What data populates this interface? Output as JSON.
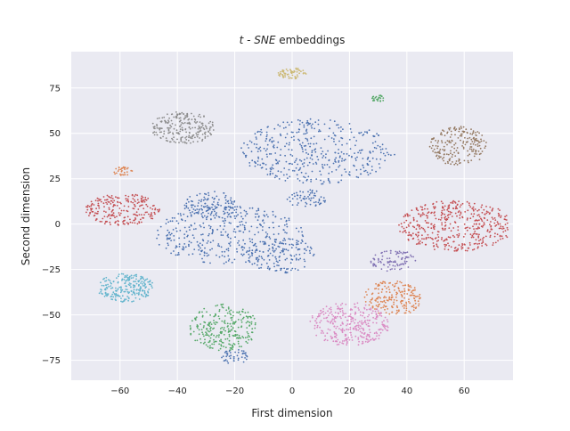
{
  "chart_data": {
    "type": "scatter",
    "title_parts": {
      "math": "t - SNE",
      "rest": " embeddings"
    },
    "xlabel": "First dimension",
    "ylabel": "Second dimension",
    "xlim": [
      -77,
      77
    ],
    "ylim": [
      -86,
      95
    ],
    "xticks": [
      -60,
      -40,
      -20,
      0,
      20,
      40,
      60
    ],
    "yticks": [
      -75,
      -50,
      -25,
      0,
      25,
      50,
      75
    ],
    "xtick_labels": [
      "−60",
      "−40",
      "−20",
      "0",
      "20",
      "40",
      "60"
    ],
    "ytick_labels": [
      "−75",
      "−50",
      "−25",
      "0",
      "25",
      "50",
      "75"
    ],
    "grid": true,
    "background": "#eaeaf2",
    "grid_color": "#ffffff",
    "clusters": [
      {
        "color": "#4c72b0",
        "shape": "ellipse",
        "cx": 9,
        "cy": 40,
        "rx": 27,
        "ry": 18,
        "n": 420
      },
      {
        "color": "#4c72b0",
        "shape": "ellipse",
        "cx": 5,
        "cy": 14,
        "rx": 7,
        "ry": 5,
        "n": 60
      },
      {
        "color": "#4c72b0",
        "shape": "ellipse",
        "cx": -28,
        "cy": 10,
        "rx": 10,
        "ry": 8,
        "n": 120
      },
      {
        "color": "#4c72b0",
        "shape": "ellipse",
        "cx": -22,
        "cy": -6,
        "rx": 26,
        "ry": 16,
        "n": 380
      },
      {
        "color": "#4c72b0",
        "shape": "ellipse",
        "cx": -4,
        "cy": -17,
        "rx": 12,
        "ry": 10,
        "n": 130
      },
      {
        "color": "#4c72b0",
        "shape": "ellipse",
        "cx": -20,
        "cy": -73,
        "rx": 5,
        "ry": 4,
        "n": 45
      },
      {
        "color": "#dd8452",
        "shape": "ellipse",
        "cx": -59,
        "cy": 29,
        "rx": 3.5,
        "ry": 2.5,
        "n": 30
      },
      {
        "color": "#dd8452",
        "shape": "ellipse",
        "cx": 35,
        "cy": -41,
        "rx": 10,
        "ry": 10,
        "n": 200
      },
      {
        "color": "#55a868",
        "shape": "ellipse",
        "cx": 30,
        "cy": 69,
        "rx": 2.5,
        "ry": 2,
        "n": 25
      },
      {
        "color": "#55a868",
        "shape": "ellipse",
        "cx": -24,
        "cy": -57,
        "rx": 12,
        "ry": 13,
        "n": 260
      },
      {
        "color": "#c44e52",
        "shape": "ellipse",
        "cx": -59,
        "cy": 8,
        "rx": 13,
        "ry": 9,
        "n": 230
      },
      {
        "color": "#c44e52",
        "shape": "ellipse",
        "cx": 57,
        "cy": -1,
        "rx": 20,
        "ry": 14,
        "n": 450
      },
      {
        "color": "#8172b3",
        "shape": "ellipse",
        "cx": 35,
        "cy": -20,
        "rx": 8,
        "ry": 6,
        "n": 90
      },
      {
        "color": "#937860",
        "shape": "ellipse",
        "cx": 58,
        "cy": 43,
        "rx": 10,
        "ry": 11,
        "n": 200
      },
      {
        "color": "#da8bc3",
        "shape": "ellipse",
        "cx": 20,
        "cy": -55,
        "rx": 14,
        "ry": 12,
        "n": 330
      },
      {
        "color": "#8c8c8c",
        "shape": "ellipse",
        "cx": -38,
        "cy": 53,
        "rx": 11,
        "ry": 9,
        "n": 230
      },
      {
        "color": "#ccb974",
        "shape": "ellipse",
        "cx": 0,
        "cy": 83,
        "rx": 5,
        "ry": 3,
        "n": 60
      },
      {
        "color": "#64b5cd",
        "shape": "ellipse",
        "cx": -58,
        "cy": -35,
        "rx": 10,
        "ry": 8,
        "n": 230
      }
    ]
  }
}
